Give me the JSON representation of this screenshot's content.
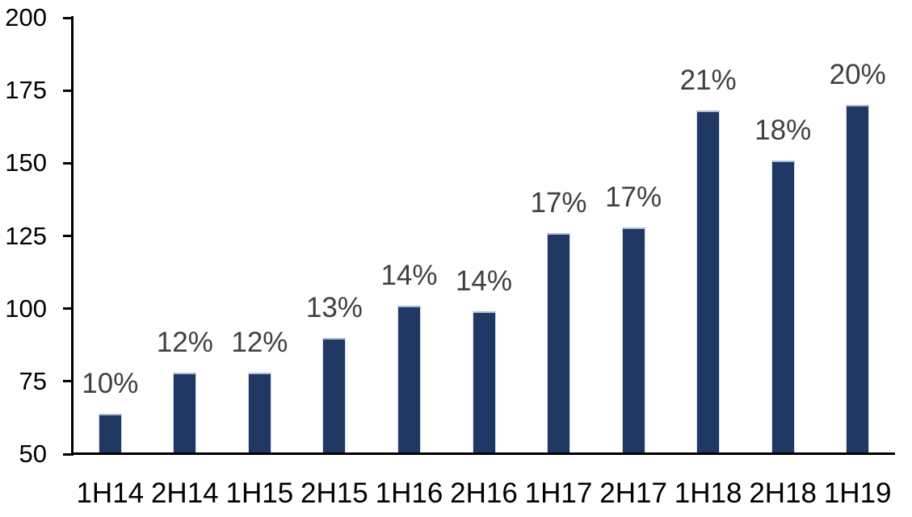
{
  "chart_data": {
    "type": "bar",
    "title": "",
    "xlabel": "",
    "ylabel": "",
    "categories": [
      "1H14",
      "2H14",
      "1H15",
      "2H15",
      "1H16",
      "2H16",
      "1H17",
      "2H17",
      "1H18",
      "2H18",
      "1H19"
    ],
    "values": [
      64,
      78,
      78,
      90,
      101,
      99,
      126,
      128,
      168,
      151,
      170
    ],
    "bar_labels": [
      "10%",
      "12%",
      "12%",
      "13%",
      "14%",
      "14%",
      "17%",
      "17%",
      "21%",
      "18%",
      "20%"
    ],
    "ylim": [
      50,
      200
    ],
    "yticks": [
      50,
      75,
      100,
      125,
      150,
      175,
      200
    ],
    "grid": false,
    "legend": false,
    "colors": {
      "bar_fill": "#1f3864",
      "bar_edge": "#aebed2",
      "data_label": "#404040",
      "axis_text": "#000000",
      "axis_line": "#000000",
      "background": "#ffffff"
    }
  }
}
